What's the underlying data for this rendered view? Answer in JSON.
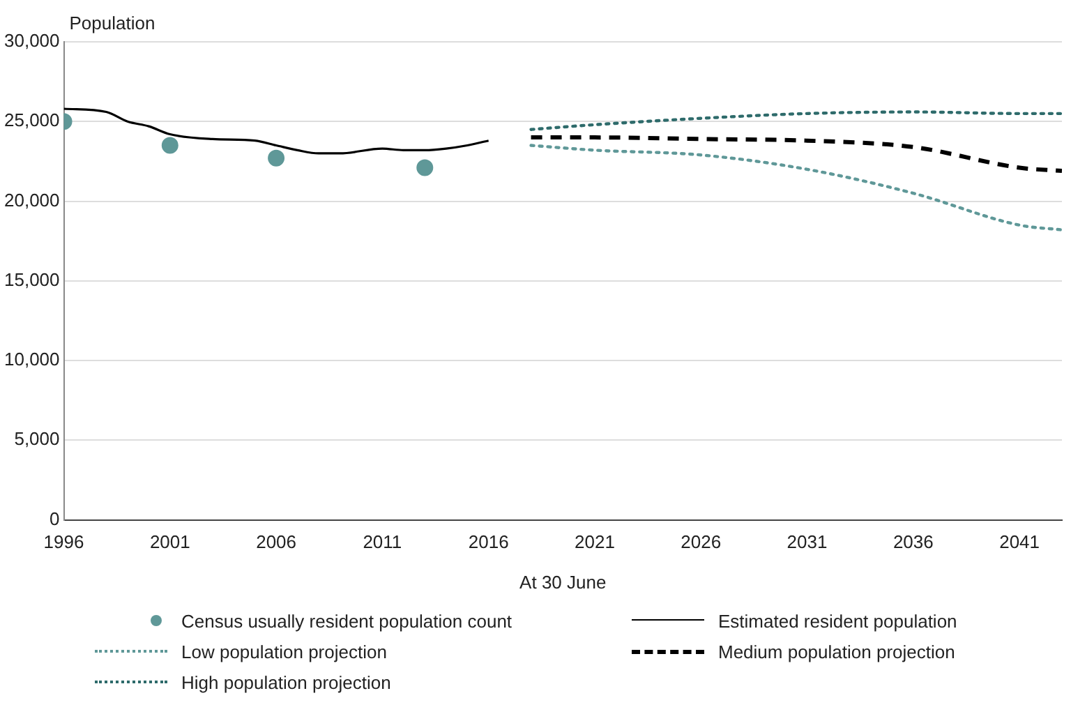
{
  "chart_data": {
    "type": "line",
    "ylabel": "Population",
    "xlabel": "At 30 June",
    "xlim": [
      1996,
      2043
    ],
    "xticks": [
      1996,
      2001,
      2006,
      2011,
      2016,
      2021,
      2026,
      2031,
      2036,
      2041
    ],
    "ylim": [
      0,
      30000
    ],
    "yticks": [
      {
        "value": 0,
        "label": "0"
      },
      {
        "value": 5000,
        "label": "5,000"
      },
      {
        "value": 10000,
        "label": "10,000"
      },
      {
        "value": 15000,
        "label": "15,000"
      },
      {
        "value": 20000,
        "label": "20,000"
      },
      {
        "value": 25000,
        "label": "25,000"
      },
      {
        "value": 30000,
        "label": "30,000"
      }
    ],
    "grid": "y",
    "legend": "bottom",
    "series": [
      {
        "name": "Census usually resident population count",
        "type": "scatter",
        "marker": "circle",
        "color": "#5f9898",
        "x": [
          1996,
          2001,
          2006,
          2013
        ],
        "values": [
          25000,
          23500,
          22700,
          22100
        ]
      },
      {
        "name": "Estimated resident population",
        "marker": "none",
        "line_style": "solid",
        "color": "#000000",
        "x": [
          1996,
          1998,
          1999,
          2000,
          2001,
          2003,
          2005,
          2006,
          2007,
          2008,
          2009,
          2011,
          2012,
          2013,
          2014,
          2015,
          2016
        ],
        "values": [
          25800,
          25600,
          25000,
          24700,
          24200,
          23900,
          23800,
          23500,
          23200,
          23000,
          23000,
          23300,
          23200,
          23200,
          23300,
          23500,
          23800
        ]
      },
      {
        "name": "Low population projection",
        "marker": "none",
        "line_style": "dotted",
        "color": "#5f9898",
        "x": [
          2018,
          2021,
          2026,
          2031,
          2036,
          2041,
          2043
        ],
        "values": [
          23500,
          23200,
          22900,
          22000,
          20500,
          18500,
          18200
        ]
      },
      {
        "name": "Medium population projection",
        "marker": "none",
        "line_style": "dashed",
        "color": "#000000",
        "x": [
          2018,
          2021,
          2026,
          2031,
          2036,
          2041,
          2043
        ],
        "values": [
          24000,
          24000,
          23900,
          23800,
          23400,
          22100,
          21900
        ]
      },
      {
        "name": "High population projection",
        "marker": "none",
        "line_style": "dotted",
        "color": "#2e6b6b",
        "x": [
          2018,
          2021,
          2026,
          2031,
          2036,
          2041,
          2043
        ],
        "values": [
          24500,
          24800,
          25200,
          25500,
          25600,
          25500,
          25500
        ]
      }
    ]
  }
}
